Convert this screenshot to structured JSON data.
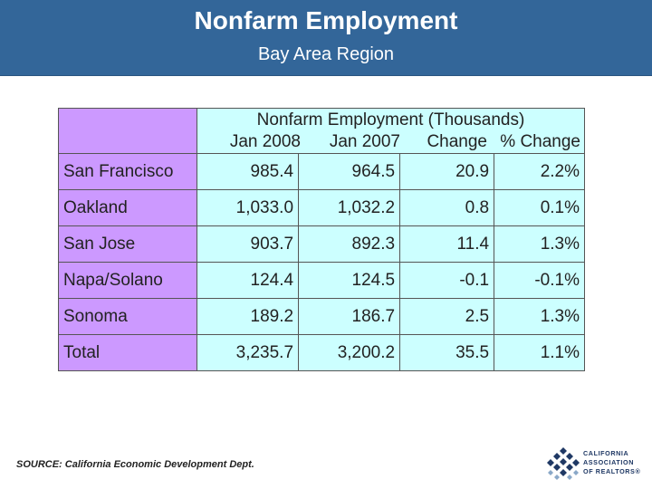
{
  "header": {
    "title": "Nonfarm Employment",
    "subtitle": "Bay Area Region"
  },
  "table": {
    "group_header": "Nonfarm Employment (Thousands)",
    "columns": [
      "Jan 2008",
      "Jan 2007",
      "Change",
      "% Change"
    ],
    "rows": [
      {
        "label": "San Francisco",
        "values": [
          "985.4",
          "964.5",
          "20.9",
          "2.2%"
        ]
      },
      {
        "label": "Oakland",
        "values": [
          "1,033.0",
          "1,032.2",
          "0.8",
          "0.1%"
        ]
      },
      {
        "label": "San Jose",
        "values": [
          "903.7",
          "892.3",
          "11.4",
          "1.3%"
        ]
      },
      {
        "label": "Napa/Solano",
        "values": [
          "124.4",
          "124.5",
          "-0.1",
          "-0.1%"
        ]
      },
      {
        "label": "Sonoma",
        "values": [
          "189.2",
          "186.7",
          "2.5",
          "1.3%"
        ]
      },
      {
        "label": "Total",
        "values": [
          "3,235.7",
          "3,200.2",
          "35.5",
          "1.1%"
        ]
      }
    ]
  },
  "footer": {
    "source": "SOURCE: California Economic Development Dept.",
    "logo": {
      "line1": "CALIFORNIA",
      "line2": "ASSOCIATION",
      "line3": "OF REALTORS®"
    }
  },
  "colors": {
    "header_bg": "#336699",
    "label_cell_bg": "#cc99ff",
    "value_cell_bg": "#ccffff"
  }
}
